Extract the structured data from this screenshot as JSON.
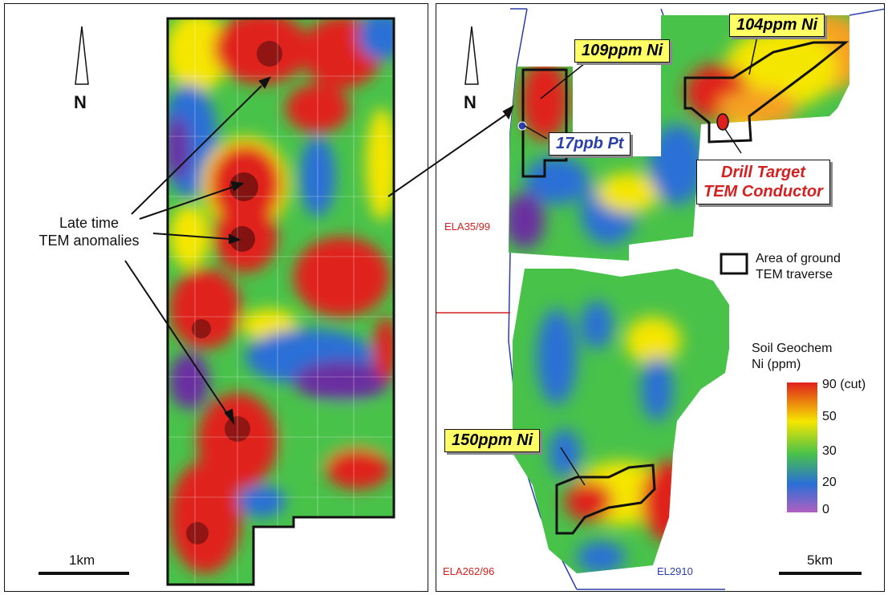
{
  "left_map": {
    "north_label": "N",
    "annotation_line1": "Late time",
    "annotation_line2": "TEM anomalies",
    "scale_label": "1km"
  },
  "right_map": {
    "north_label": "N",
    "callouts": {
      "ni_109": "109ppm Ni",
      "ni_104": "104ppm Ni",
      "pt_17": "17ppb Pt",
      "ni_150": "150ppm Ni",
      "drill_line1": "Drill Target",
      "drill_line2": "TEM Conductor"
    },
    "licences": {
      "ela35": "ELA35/99",
      "ela262": "ELA262/96",
      "el2910": "EL2910"
    },
    "traverse_legend_line1": "Area of ground",
    "traverse_legend_line2": "TEM traverse",
    "scale_label": "5km",
    "legend": {
      "title_line1": "Soil Geochem",
      "title_line2": "Ni (ppm)",
      "ticks": [
        "90 (cut)",
        "50",
        "30",
        "20",
        "0"
      ]
    }
  },
  "colors": {
    "red": "#e0201c",
    "yellow": "#f5e600",
    "green": "#49c24a",
    "blue": "#2a6fd6",
    "purple": "#6b2fa0",
    "callout_fill": "#ffff66",
    "licence_red": "#d42020",
    "licence_blue": "#2a3fa8"
  }
}
